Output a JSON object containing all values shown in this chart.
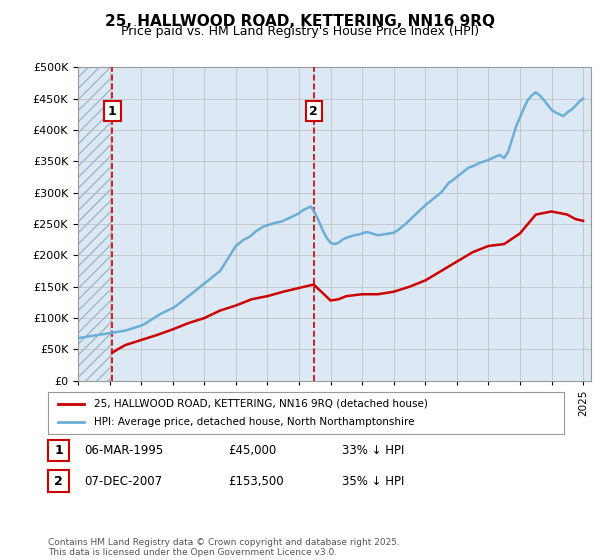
{
  "title": "25, HALLWOOD ROAD, KETTERING, NN16 9RQ",
  "subtitle": "Price paid vs. HM Land Registry's House Price Index (HPI)",
  "legend_line1": "25, HALLWOOD ROAD, KETTERING, NN16 9RQ (detached house)",
  "legend_line2": "HPI: Average price, detached house, North Northamptonshire",
  "footnote": "Contains HM Land Registry data © Crown copyright and database right 2025.\nThis data is licensed under the Open Government Licence v3.0.",
  "sales": [
    {
      "label": "1",
      "date": "06-MAR-1995",
      "price": 45000,
      "pct": "33%",
      "direction": "↓",
      "year": 1995.18
    },
    {
      "label": "2",
      "date": "07-DEC-2007",
      "price": 153500,
      "pct": "35%",
      "direction": "↓",
      "year": 2007.93
    }
  ],
  "sale_info": [
    {
      "num": "1",
      "date": "06-MAR-1995",
      "price": "£45,000",
      "note": "33% ↓ HPI"
    },
    {
      "num": "2",
      "date": "07-DEC-2007",
      "price": "£153,500",
      "note": "35% ↓ HPI"
    }
  ],
  "ylim": [
    0,
    500000
  ],
  "xlim_start": 1993,
  "xlim_end": 2025.5,
  "hpi_color": "#6baed6",
  "price_color": "#cc0000",
  "vline_color": "#cc0000",
  "bg_color": "#dce9f5",
  "hatch_color": "#c8d8e8",
  "grid_color": "#bbbbbb",
  "hpi_data_x": [
    1993,
    1993.25,
    1993.5,
    1993.75,
    1994,
    1994.25,
    1994.5,
    1994.75,
    1995,
    1995.25,
    1995.5,
    1995.75,
    1996,
    1996.25,
    1996.5,
    1996.75,
    1997,
    1997.25,
    1997.5,
    1997.75,
    1998,
    1998.25,
    1998.5,
    1998.75,
    1999,
    1999.25,
    1999.5,
    1999.75,
    2000,
    2000.25,
    2000.5,
    2000.75,
    2001,
    2001.25,
    2001.5,
    2001.75,
    2002,
    2002.25,
    2002.5,
    2002.75,
    2003,
    2003.25,
    2003.5,
    2003.75,
    2004,
    2004.25,
    2004.5,
    2004.75,
    2005,
    2005.25,
    2005.5,
    2005.75,
    2006,
    2006.25,
    2006.5,
    2006.75,
    2007,
    2007.25,
    2007.5,
    2007.75,
    2008,
    2008.25,
    2008.5,
    2008.75,
    2009,
    2009.25,
    2009.5,
    2009.75,
    2010,
    2010.25,
    2010.5,
    2010.75,
    2011,
    2011.25,
    2011.5,
    2011.75,
    2012,
    2012.25,
    2012.5,
    2012.75,
    2013,
    2013.25,
    2013.5,
    2013.75,
    2014,
    2014.25,
    2014.5,
    2014.75,
    2015,
    2015.25,
    2015.5,
    2015.75,
    2016,
    2016.25,
    2016.5,
    2016.75,
    2017,
    2017.25,
    2017.5,
    2017.75,
    2018,
    2018.25,
    2018.5,
    2018.75,
    2019,
    2019.25,
    2019.5,
    2019.75,
    2020,
    2020.25,
    2020.5,
    2020.75,
    2021,
    2021.25,
    2021.5,
    2021.75,
    2022,
    2022.25,
    2022.5,
    2022.75,
    2023,
    2023.25,
    2023.5,
    2023.75,
    2024,
    2024.25,
    2024.5,
    2024.75,
    2025
  ],
  "hpi_data_y": [
    68000,
    69000,
    70000,
    71000,
    72000,
    73000,
    74000,
    75000,
    76000,
    77000,
    78000,
    79000,
    80000,
    82000,
    84000,
    86000,
    88000,
    91000,
    95000,
    99000,
    103000,
    107000,
    110000,
    113000,
    116000,
    120000,
    125000,
    130000,
    135000,
    140000,
    145000,
    150000,
    155000,
    160000,
    165000,
    170000,
    175000,
    185000,
    195000,
    205000,
    215000,
    220000,
    225000,
    228000,
    232000,
    238000,
    242000,
    246000,
    248000,
    250000,
    252000,
    253000,
    255000,
    258000,
    261000,
    264000,
    267000,
    272000,
    275000,
    278000,
    268000,
    255000,
    240000,
    228000,
    220000,
    218000,
    220000,
    225000,
    228000,
    230000,
    232000,
    233000,
    235000,
    237000,
    236000,
    234000,
    232000,
    233000,
    234000,
    235000,
    236000,
    240000,
    245000,
    250000,
    256000,
    262000,
    268000,
    274000,
    280000,
    285000,
    290000,
    295000,
    300000,
    308000,
    316000,
    320000,
    325000,
    330000,
    335000,
    340000,
    342000,
    345000,
    348000,
    350000,
    352000,
    355000,
    358000,
    360000,
    355000,
    365000,
    385000,
    405000,
    420000,
    435000,
    448000,
    455000,
    460000,
    455000,
    448000,
    440000,
    432000,
    428000,
    425000,
    422000,
    428000,
    432000,
    438000,
    445000,
    450000
  ],
  "price_data_x": [
    1995.18,
    1995.5,
    1996,
    1997,
    1998,
    1999,
    2000,
    2001,
    2002,
    2003,
    2004,
    2005,
    2006,
    2007.0,
    2007.93,
    2008.5,
    2009,
    2009.5,
    2010,
    2011,
    2012,
    2013,
    2014,
    2015,
    2016,
    2017,
    2018,
    2019,
    2020,
    2021,
    2022,
    2023,
    2024,
    2024.5,
    2025
  ],
  "price_data_y": [
    45000,
    50000,
    57000,
    65000,
    73000,
    82000,
    92000,
    100000,
    112000,
    120000,
    130000,
    135000,
    142000,
    148000,
    153500,
    140000,
    128000,
    130000,
    135000,
    138000,
    138000,
    142000,
    150000,
    160000,
    175000,
    190000,
    205000,
    215000,
    218000,
    235000,
    265000,
    270000,
    265000,
    258000,
    255000
  ]
}
